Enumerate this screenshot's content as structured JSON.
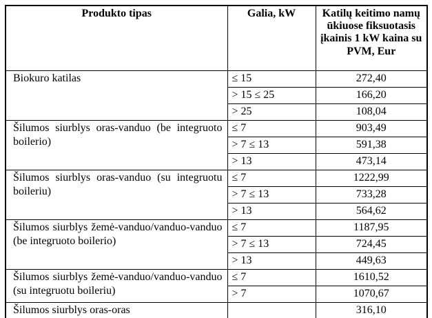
{
  "table": {
    "headers": [
      "Produkto tipas",
      "Galia, kW",
      "Katilų keitimo namų ūkiuose fiksuotasis įkainis 1 kW kaina su PVM, Eur"
    ],
    "groups": [
      {
        "product": "Biokuro katilas",
        "rows": [
          {
            "galia": "≤ 15",
            "price": "272,40"
          },
          {
            "galia": "> 15 ≤ 25",
            "price": "166,20"
          },
          {
            "galia": "> 25",
            "price": "108,04"
          }
        ]
      },
      {
        "product": "Šilumos siurblys oras-vanduo (be integruoto boilerio)",
        "rows": [
          {
            "galia": "≤ 7",
            "price": "903,49"
          },
          {
            "galia": "> 7 ≤ 13",
            "price": "591,38"
          },
          {
            "galia": "> 13",
            "price": "473,14"
          }
        ]
      },
      {
        "product": "Šilumos siurblys oras-vanduo (su integruotu boileriu)",
        "rows": [
          {
            "galia": "≤ 7",
            "price": "1222,99"
          },
          {
            "galia": "> 7 ≤ 13",
            "price": "733,28"
          },
          {
            "galia": "> 13",
            "price": "564,62"
          }
        ]
      },
      {
        "product": "Šilumos siurblys žemė-vanduo/vanduo-vanduo (be integruoto boilerio)",
        "rows": [
          {
            "galia": "≤ 7",
            "price": "1187,95"
          },
          {
            "galia": "> 7 ≤ 13",
            "price": "724,45"
          },
          {
            "galia": "> 13",
            "price": "449,63"
          }
        ]
      },
      {
        "product": "Šilumos siurblys žemė-vanduo/vanduo-vanduo (su integruotu boileriu)",
        "rows": [
          {
            "galia": "≤ 7",
            "price": "1610,52"
          },
          {
            "galia": "> 7",
            "price": "1070,67"
          }
        ]
      },
      {
        "product": "Šilumos siurblys oras-oras",
        "rows": [
          {
            "galia": "",
            "price": "316,10"
          }
        ]
      }
    ]
  }
}
